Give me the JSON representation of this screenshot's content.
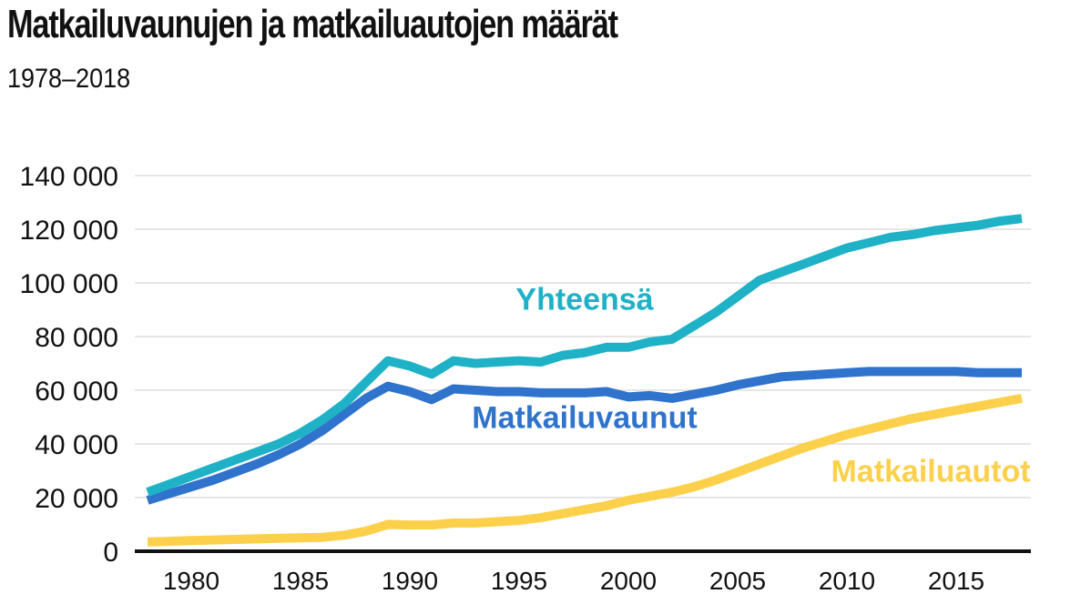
{
  "title": "Matkailuvaunujen ja matkailuautojen määrät",
  "subtitle": "1978–2018",
  "chart_data": {
    "type": "line",
    "title": "Matkailuvaunujen ja matkailuautojen määrät",
    "subtitle": "1978–2018",
    "xlabel": "",
    "ylabel": "",
    "xlim": [
      1978,
      2018
    ],
    "ylim": [
      0,
      140000
    ],
    "y_ticks": [
      0,
      20000,
      40000,
      60000,
      80000,
      100000,
      120000,
      140000
    ],
    "y_tick_labels": [
      "0",
      "20 000",
      "40 000",
      "60 000",
      "80 000",
      "100 000",
      "120 000",
      "140 000"
    ],
    "x_ticks": [
      1980,
      1985,
      1990,
      1995,
      2000,
      2005,
      2010,
      2015
    ],
    "x_tick_labels": [
      "1980",
      "1985",
      "1990",
      "1995",
      "2000",
      "2005",
      "2010",
      "2015"
    ],
    "grid": true,
    "legend": "inline labels",
    "x": [
      1978,
      1979,
      1980,
      1981,
      1982,
      1983,
      1984,
      1985,
      1986,
      1987,
      1988,
      1989,
      1990,
      1991,
      1992,
      1993,
      1994,
      1995,
      1996,
      1997,
      1998,
      1999,
      2000,
      2001,
      2002,
      2003,
      2004,
      2005,
      2006,
      2007,
      2008,
      2009,
      2010,
      2011,
      2012,
      2013,
      2014,
      2015,
      2016,
      2017,
      2018
    ],
    "series": [
      {
        "name": "Yhteensä",
        "color": "#1fb1c6",
        "values": [
          22000,
          25000,
          28000,
          31000,
          34000,
          37000,
          40000,
          44000,
          49000,
          55000,
          63000,
          71000,
          69000,
          66000,
          71000,
          70000,
          70500,
          71000,
          70500,
          73000,
          74000,
          76000,
          76000,
          78000,
          79000,
          84000,
          89000,
          95000,
          101000,
          104000,
          107000,
          110000,
          113000,
          115000,
          117000,
          118000,
          119500,
          120500,
          121500,
          123000,
          124000
        ]
      },
      {
        "name": "Matkailuvaunut",
        "color": "#2f73cc",
        "values": [
          19000,
          21500,
          24000,
          26500,
          29500,
          32500,
          36000,
          40000,
          45000,
          51000,
          57000,
          61500,
          59500,
          56500,
          60500,
          60000,
          59500,
          59500,
          59000,
          59000,
          59000,
          59500,
          57500,
          58000,
          57000,
          58500,
          60000,
          62000,
          63500,
          65000,
          65500,
          66000,
          66500,
          67000,
          67000,
          67000,
          67000,
          67000,
          66500,
          66500,
          66500
        ]
      },
      {
        "name": "Matkailuautot",
        "color": "#fcd04a",
        "values": [
          3500,
          3700,
          4000,
          4200,
          4400,
          4600,
          4800,
          5000,
          5200,
          6000,
          7500,
          10000,
          9800,
          9800,
          10500,
          10500,
          11000,
          11500,
          12500,
          14000,
          15500,
          17000,
          19000,
          20500,
          22000,
          24000,
          26500,
          29500,
          32500,
          35500,
          38500,
          41000,
          43500,
          45500,
          47500,
          49500,
          51000,
          52500,
          54000,
          55500,
          57000
        ]
      }
    ]
  }
}
